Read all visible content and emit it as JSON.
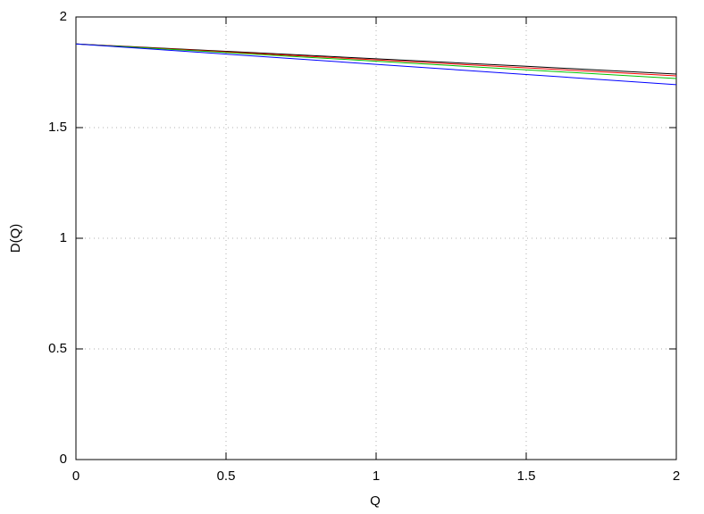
{
  "chart_data": {
    "type": "line",
    "x_label": "Q",
    "y_label": "D(Q)",
    "x": [
      0,
      0.5,
      1,
      1.5,
      2
    ],
    "series": [
      {
        "color": "#000000",
        "values": [
          1.878,
          1.845,
          1.811,
          1.777,
          1.742
        ]
      },
      {
        "color": "#ff0000",
        "values": [
          1.878,
          1.842,
          1.806,
          1.77,
          1.734
        ]
      },
      {
        "color": "#00c000",
        "values": [
          1.878,
          1.839,
          1.8,
          1.761,
          1.722
        ]
      },
      {
        "color": "#0000ff",
        "values": [
          1.878,
          1.832,
          1.786,
          1.74,
          1.694
        ]
      }
    ],
    "xlim": [
      0,
      2
    ],
    "ylim": [
      0,
      2
    ],
    "xticks": [
      0,
      0.5,
      1,
      1.5,
      2
    ],
    "yticks": [
      0,
      0.5,
      1,
      1.5,
      2
    ],
    "grid": true
  }
}
